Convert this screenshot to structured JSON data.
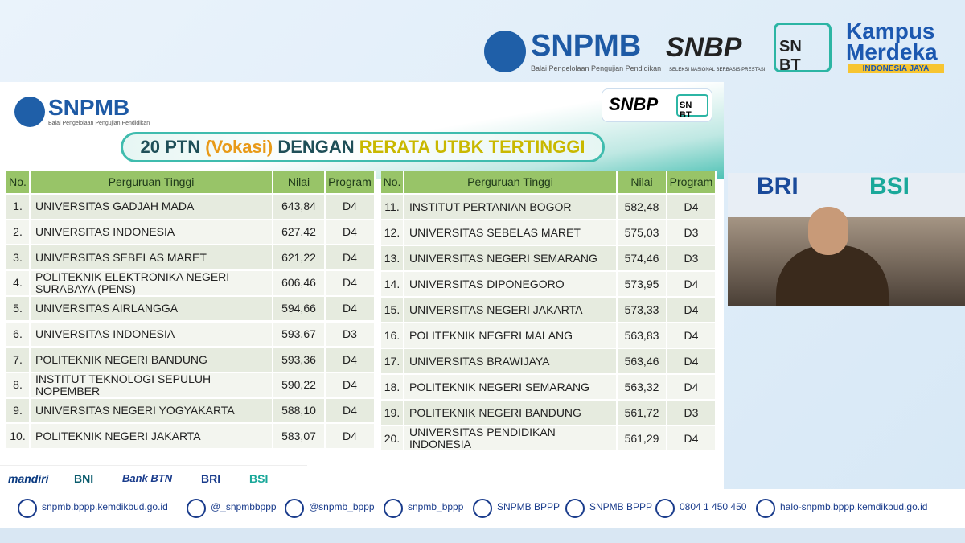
{
  "header": {
    "snpmb": "SNPMB",
    "snpmb_sub": "Balai Pengelolaan Pengujian Pendidikan",
    "snbp": "SNBP",
    "snbp_sub": "SELEKSI NASIONAL BERBASIS PRESTASI",
    "snbt_sn": "SN",
    "snbt_bt": "BT",
    "kampus": "Kampus",
    "merdeka": "Merdeka",
    "tagline": "INDONESIA JAYA"
  },
  "slide": {
    "logo": "SNPMB",
    "logo_sub": "Balai Pengelolaan Pengujian Pendidikan",
    "snbp": "SNBP",
    "snbt_sn": "SN",
    "snbt_bt": "BT",
    "title_parts": [
      "20 PTN ",
      "(Vokasi)",
      " DENGAN ",
      "RERATA UTBK TERTINGGI"
    ],
    "columns": [
      "No.",
      "Perguruan Tinggi",
      "Nilai",
      "Program"
    ],
    "left_rows": [
      [
        "1.",
        "UNIVERSITAS GADJAH MADA",
        "643,84",
        "D4"
      ],
      [
        "2.",
        "UNIVERSITAS INDONESIA",
        "627,42",
        "D4"
      ],
      [
        "3.",
        "UNIVERSITAS SEBELAS MARET",
        "621,22",
        "D4"
      ],
      [
        "4.",
        "POLITEKNIK ELEKTRONIKA NEGERI SURABAYA (PENS)",
        "606,46",
        "D4"
      ],
      [
        "5.",
        "UNIVERSITAS AIRLANGGA",
        "594,66",
        "D4"
      ],
      [
        "6.",
        "UNIVERSITAS INDONESIA",
        "593,67",
        "D3"
      ],
      [
        "7.",
        "POLITEKNIK NEGERI BANDUNG",
        "593,36",
        "D4"
      ],
      [
        "8.",
        "INSTITUT TEKNOLOGI SEPULUH NOPEMBER",
        "590,22",
        "D4"
      ],
      [
        "9.",
        "UNIVERSITAS NEGERI YOGYAKARTA",
        "588,10",
        "D4"
      ],
      [
        "10.",
        "POLITEKNIK NEGERI JAKARTA",
        "583,07",
        "D4"
      ]
    ],
    "right_rows": [
      [
        "11.",
        "INSTITUT PERTANIAN BOGOR",
        "582,48",
        "D4"
      ],
      [
        "12.",
        "UNIVERSITAS SEBELAS MARET",
        "575,03",
        "D3"
      ],
      [
        "13.",
        "UNIVERSITAS NEGERI SEMARANG",
        "574,46",
        "D3"
      ],
      [
        "14.",
        "UNIVERSITAS DIPONEGORO",
        "573,95",
        "D4"
      ],
      [
        "15.",
        "UNIVERSITAS NEGERI JAKARTA",
        "573,33",
        "D4"
      ],
      [
        "16.",
        "POLITEKNIK NEGERI MALANG",
        "563,83",
        "D4"
      ],
      [
        "17.",
        "UNIVERSITAS BRAWIJAYA",
        "563,46",
        "D4"
      ],
      [
        "18.",
        "POLITEKNIK NEGERI SEMARANG",
        "563,32",
        "D4"
      ],
      [
        "19.",
        "POLITEKNIK NEGERI BANDUNG",
        "561,72",
        "D3"
      ],
      [
        "20.",
        "UNIVERSITAS PENDIDIKAN INDONESIA",
        "561,29",
        "D4"
      ]
    ],
    "sponsors": [
      "mandiri",
      "BNI",
      "Bank BTN",
      "BRI",
      "BSI"
    ]
  },
  "video": {
    "banners": [
      "BRI",
      "BSI"
    ]
  },
  "footer": [
    "snpmb.bppp.kemdikbud.go.id",
    "@_snpmbbppp",
    "@snpmb_bppp",
    "snpmb_bppp",
    "SNPMB BPPP",
    "SNPMB BPPP",
    "0804 1 450 450",
    "halo-snpmb.bppp.kemdikbud.go.id"
  ]
}
